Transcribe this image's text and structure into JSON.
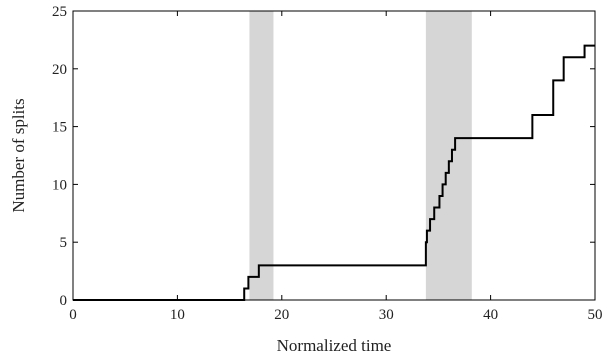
{
  "chart_data": {
    "type": "line",
    "title": "",
    "xlabel": "Normalized time",
    "ylabel": "Number of splits",
    "xlim": [
      0,
      50
    ],
    "ylim": [
      0,
      25
    ],
    "xticks": [
      0,
      10,
      20,
      30,
      40,
      50
    ],
    "yticks": [
      0,
      5,
      10,
      15,
      20,
      25
    ],
    "grid": false,
    "legend": "none",
    "step": "post",
    "shaded_regions": [
      {
        "x_start": 16.9,
        "x_end": 19.2
      },
      {
        "x_start": 33.8,
        "x_end": 38.2
      }
    ],
    "series": [
      {
        "color": "#000000",
        "x": [
          0,
          16.4,
          16.8,
          17.8,
          33.8,
          33.9,
          34.2,
          34.6,
          35.1,
          35.4,
          35.7,
          36.0,
          36.3,
          36.6,
          44.0,
          46.0,
          47.0,
          49.0,
          50.0
        ],
        "y": [
          0,
          1,
          2,
          3,
          5,
          6,
          7,
          8,
          9,
          10,
          11,
          12,
          13,
          14,
          16,
          19,
          21,
          22,
          22
        ]
      }
    ],
    "colors": {
      "line": "#000000",
      "shade": "#d6d6d6",
      "axes": "#000000"
    }
  }
}
